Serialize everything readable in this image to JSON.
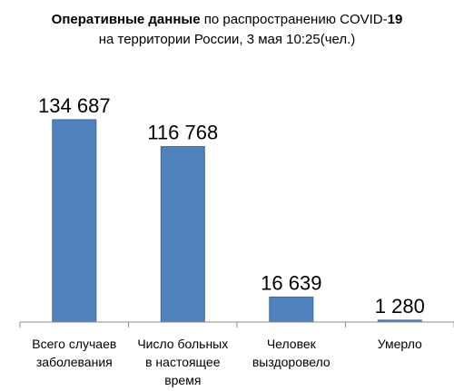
{
  "chart_data": {
    "type": "bar",
    "title": {
      "line1_bold": "Оперативные данные",
      "line1_mid": " по распространению COVID-",
      "line1_bold_end": "19",
      "line2": "на территории России, 3 мая 10:25(чел.)"
    },
    "categories": [
      [
        "Всего случаев",
        "заболевания"
      ],
      [
        "Число больных",
        "в настоящее",
        "время"
      ],
      [
        "Человек",
        "выздоровело"
      ],
      [
        "Умерло"
      ]
    ],
    "values": [
      134687,
      116768,
      16639,
      1280
    ],
    "data_labels": [
      "134 687",
      "116 768",
      "16 639",
      "1 280"
    ],
    "ylim": [
      0,
      160000
    ],
    "grid": false,
    "bar_color": "#4f81bd",
    "bar_border_color": "#3a6aa6",
    "axis_color": "#8c8c8c"
  }
}
